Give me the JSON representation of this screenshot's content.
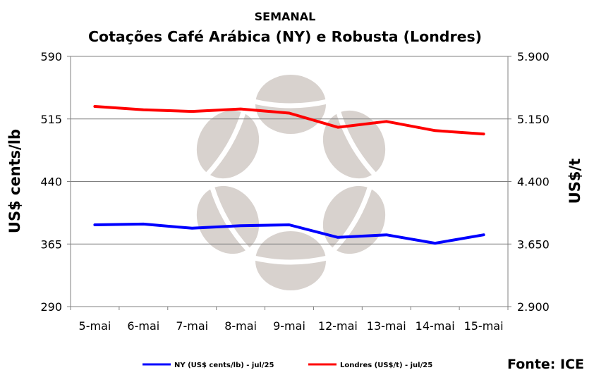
{
  "chart_data": {
    "type": "line",
    "title": "SEMANAL",
    "subtitle": "Cotações Café Arábica (NY) e Robusta (Londres)",
    "categories": [
      "5-mai",
      "6-mai",
      "7-mai",
      "8-mai",
      "9-mai",
      "12-mai",
      "13-mai",
      "14-mai",
      "15-mai"
    ],
    "ylabel_left": "US$ cents/lb",
    "ylabel_right": "US$/t",
    "ylim_left": [
      290,
      590
    ],
    "ylim_right": [
      2900,
      5900
    ],
    "yticks_left": [
      "290",
      "365",
      "440",
      "515",
      "590"
    ],
    "yticks_right": [
      "2.900",
      "3.650",
      "4.400",
      "5.150",
      "5.900"
    ],
    "grid": "horizontal",
    "legend_position": "bottom",
    "series": [
      {
        "name": "NY (US$ cents/lb) - jul/25",
        "axis": "left",
        "color": "#0000ff",
        "values": [
          388,
          389,
          384,
          387,
          388,
          373,
          376,
          366,
          376
        ]
      },
      {
        "name": "Londres (US$/t) - jul/25",
        "axis": "right",
        "color": "#ff0000",
        "values": [
          5300,
          5260,
          5240,
          5270,
          5220,
          5050,
          5120,
          5010,
          4970
        ]
      }
    ],
    "source": "Fonte: ICE"
  }
}
